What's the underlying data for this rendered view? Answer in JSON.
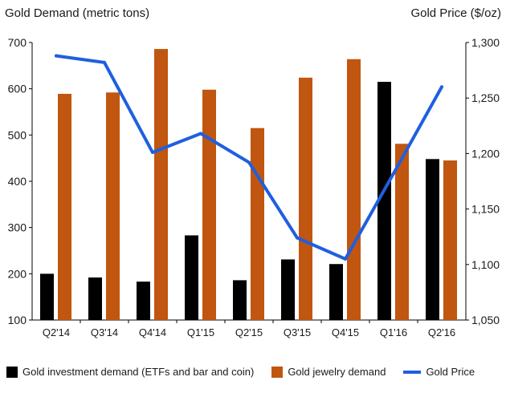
{
  "chart_data": {
    "type": "bar",
    "ylabel_left": "Gold Demand  (metric tons)",
    "ylabel_right": "Gold Price  ($/oz)",
    "categories": [
      "Q2'14",
      "Q3'14",
      "Q4'14",
      "Q1'15",
      "Q2'15",
      "Q3'15",
      "Q4'15",
      "Q1'16",
      "Q2'16"
    ],
    "ylim_left": [
      100,
      700
    ],
    "yticks_left": [
      100,
      200,
      300,
      400,
      500,
      600,
      700
    ],
    "ylim_right": [
      1050,
      1300
    ],
    "yticks_right": [
      "1,050",
      "1,100",
      "1,150",
      "1,200",
      "1,250",
      "1,300"
    ],
    "yticks_right_values": [
      1050,
      1100,
      1150,
      1200,
      1250,
      1300
    ],
    "grid": false,
    "legend_position": "bottom",
    "series": [
      {
        "name": "Gold investment demand (ETFs and bar and coin)",
        "type": "bar",
        "axis": "left",
        "color": "#000000",
        "values": [
          200,
          192,
          183,
          283,
          186,
          231,
          221,
          615,
          448
        ]
      },
      {
        "name": "Gold jewelry demand",
        "type": "bar",
        "axis": "left",
        "color": "#c0560f",
        "values": [
          589,
          592,
          686,
          598,
          515,
          624,
          664,
          481,
          445
        ]
      },
      {
        "name": "Gold Price",
        "type": "line",
        "axis": "right",
        "color": "#1f5fe0",
        "values": [
          1288,
          1282,
          1201,
          1218,
          1192,
          1124,
          1105,
          1182,
          1260
        ]
      }
    ]
  }
}
